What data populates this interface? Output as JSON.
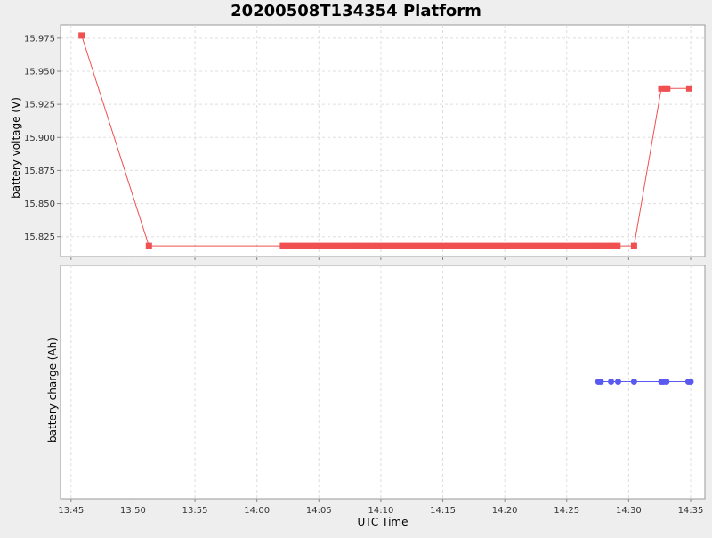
{
  "title": "20200508T134354 Platform",
  "x_axis": {
    "label": "UTC Time",
    "ticks": [
      "13:45",
      "13:50",
      "13:55",
      "14:00",
      "14:05",
      "14:10",
      "14:15",
      "14:20",
      "14:25",
      "14:30",
      "14:35"
    ]
  },
  "colors": {
    "voltage": "#f05050",
    "charge": "#5a5af0",
    "background": "#eeeeee",
    "plot_bg": "#ffffff",
    "grid": "#dddddd"
  },
  "chart_data": [
    {
      "type": "line",
      "ylabel": "battery voltage (V)",
      "ylim": [
        15.81,
        15.985
      ],
      "yticks": [
        15.825,
        15.85,
        15.875,
        15.9,
        15.925,
        15.95,
        15.975
      ],
      "ytick_labels": [
        "15.825",
        "15.850",
        "15.875",
        "15.900",
        "15.925",
        "15.950",
        "15.975"
      ],
      "xlim": [
        "13:44:09",
        "14:36:09"
      ],
      "grid": true,
      "marker": "square",
      "series": [
        {
          "x": [
            "13:45:51",
            "13:51:17",
            "14:02:06",
            "14:02:33",
            "14:03:00",
            "14:03:27",
            "14:03:54",
            "14:04:21",
            "14:04:48",
            "14:05:15",
            "14:05:42",
            "14:06:09",
            "14:06:36",
            "14:07:03",
            "14:07:30",
            "14:07:57",
            "14:08:24",
            "14:08:51",
            "14:09:18",
            "14:09:45",
            "14:10:12",
            "14:10:39",
            "14:11:06",
            "14:11:33",
            "14:12:00",
            "14:12:27",
            "14:12:54",
            "14:13:21",
            "14:13:48",
            "14:14:15",
            "14:14:42",
            "14:15:09",
            "14:15:36",
            "14:16:03",
            "14:16:30",
            "14:16:57",
            "14:17:24",
            "14:17:51",
            "14:18:18",
            "14:18:45",
            "14:19:12",
            "14:19:39",
            "14:20:06",
            "14:20:33",
            "14:21:00",
            "14:21:27",
            "14:21:54",
            "14:22:21",
            "14:22:48",
            "14:23:15",
            "14:23:42",
            "14:24:09",
            "14:24:36",
            "14:25:03",
            "14:25:30",
            "14:25:57",
            "14:26:24",
            "14:26:51",
            "14:27:18",
            "14:27:45",
            "14:28:12",
            "14:28:39",
            "14:29:06",
            "14:30:26",
            "14:32:38",
            "14:33:00",
            "14:33:07",
            "14:34:53"
          ],
          "y": [
            15.977,
            15.818,
            15.818,
            15.818,
            15.818,
            15.818,
            15.818,
            15.818,
            15.818,
            15.818,
            15.818,
            15.818,
            15.818,
            15.818,
            15.818,
            15.818,
            15.818,
            15.818,
            15.818,
            15.818,
            15.818,
            15.818,
            15.818,
            15.818,
            15.818,
            15.818,
            15.818,
            15.818,
            15.818,
            15.818,
            15.818,
            15.818,
            15.818,
            15.818,
            15.818,
            15.818,
            15.818,
            15.818,
            15.818,
            15.818,
            15.818,
            15.818,
            15.818,
            15.818,
            15.818,
            15.818,
            15.818,
            15.818,
            15.818,
            15.818,
            15.818,
            15.818,
            15.818,
            15.818,
            15.818,
            15.818,
            15.818,
            15.818,
            15.818,
            15.818,
            15.818,
            15.818,
            15.818,
            15.818,
            15.937,
            15.937,
            15.937,
            15.937
          ]
        }
      ]
    },
    {
      "type": "line",
      "ylabel": "battery charge (Ah)",
      "xlim": [
        "13:44:09",
        "14:36:09"
      ],
      "grid": true,
      "marker": "circle",
      "series": [
        {
          "x": [
            "14:27:33",
            "14:27:45",
            "14:28:35",
            "14:29:09",
            "14:30:26",
            "14:32:38",
            "14:32:49",
            "14:33:03",
            "14:34:49",
            "14:35:00"
          ],
          "y": [
            0,
            0,
            0,
            0,
            0,
            0,
            0,
            0,
            0,
            0
          ]
        }
      ]
    }
  ]
}
